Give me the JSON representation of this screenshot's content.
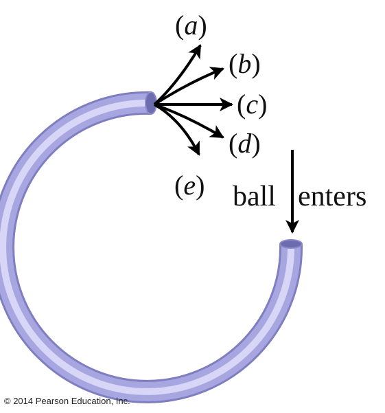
{
  "labels": {
    "a": "a",
    "b": "b",
    "c": "c",
    "d": "d",
    "e": "e"
  },
  "entry_label_left": "ball",
  "entry_label_right": "enters",
  "copyright": "© 2014 Pearson Education, Inc.",
  "colors": {
    "tube_base": "#a7a6e0",
    "tube_highlight": "#d7d6f6",
    "tube_shadow": "#7f7ec0",
    "tube_opening": "#6d6cae",
    "arrow": "#000000"
  }
}
